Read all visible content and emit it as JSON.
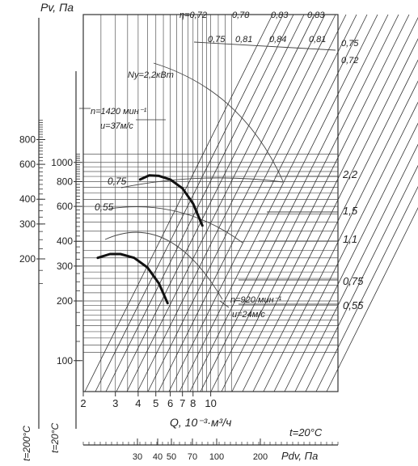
{
  "chart_data": {
    "type": "line",
    "title": "",
    "ylabel_left": "Pv, Па",
    "xlabel": "Q, 10⁻³·м³/ч",
    "x_scale": "log",
    "xlim": [
      2,
      13.5
    ],
    "x_ticks": [
      {
        "v": 2,
        "label": "2"
      },
      {
        "v": 3,
        "label": "3"
      },
      {
        "v": 4,
        "label": "4"
      },
      {
        "v": 5,
        "label": "5"
      },
      {
        "v": 6,
        "label": "6"
      },
      {
        "v": 7,
        "label": "7"
      },
      {
        "v": 8,
        "label": "8"
      },
      {
        "v": 10,
        "label": "10"
      }
    ],
    "axis_t200": {
      "label": "t=200°C",
      "ticks": [
        {
          "v": 800,
          "label": "800"
        },
        {
          "v": 600,
          "label": "600"
        },
        {
          "v": 400,
          "label": "400"
        },
        {
          "v": 300,
          "label": "300"
        },
        {
          "v": 200,
          "label": "200"
        }
      ]
    },
    "axis_t20": {
      "label": "t=20°C",
      "ticks": [
        {
          "v": 1000,
          "label": "1000"
        },
        {
          "v": 800,
          "label": "800"
        },
        {
          "v": 600,
          "label": "600"
        },
        {
          "v": 400,
          "label": "400"
        },
        {
          "v": 300,
          "label": "300"
        },
        {
          "v": 200,
          "label": "200"
        },
        {
          "v": 100,
          "label": "100"
        }
      ]
    },
    "efficiency_labels_top": [
      "η=0,72",
      "0,78",
      "0,83",
      "0,83"
    ],
    "efficiency_labels_row2": [
      "0,75",
      "0,81",
      "0,84",
      "0,81"
    ],
    "efficiency_labels_right": [
      "0,75",
      "0,72"
    ],
    "power_labels_right": [
      "2,2",
      "1,5",
      "1,1",
      "0,75",
      "0,55"
    ],
    "power_labels_inside": [
      "Ny=2,2кВт",
      "0,75",
      "0,55"
    ],
    "series": [
      {
        "name": "n=1420 мин⁻¹",
        "speed_label": "u=37м/с",
        "points": [
          [
            4.1,
            820
          ],
          [
            4.6,
            860
          ],
          [
            5.2,
            855
          ],
          [
            6.0,
            820
          ],
          [
            7.0,
            740
          ],
          [
            8.0,
            620
          ],
          [
            9.0,
            480
          ]
        ]
      },
      {
        "name": "n=920 мин⁻¹",
        "speed_label": "u=24м/с",
        "points": [
          [
            2.4,
            330
          ],
          [
            2.8,
            345
          ],
          [
            3.2,
            345
          ],
          [
            3.8,
            330
          ],
          [
            4.5,
            295
          ],
          [
            5.2,
            245
          ],
          [
            5.8,
            195
          ]
        ]
      }
    ],
    "bottom_axis": {
      "label": "Pdv, Па",
      "temperature": "t=20°C",
      "ticks": [
        "30",
        "40",
        "50",
        "70",
        "100",
        "200"
      ]
    },
    "grid": true
  }
}
